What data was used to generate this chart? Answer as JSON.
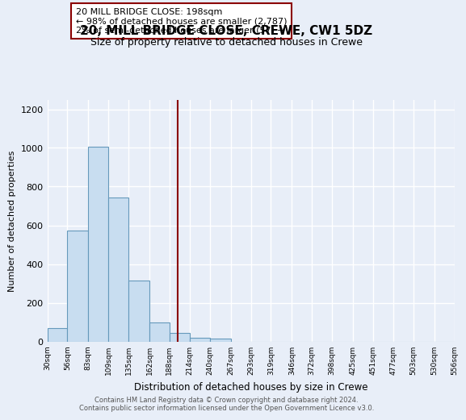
{
  "title": "20, MILL BRIDGE CLOSE, CREWE, CW1 5DZ",
  "subtitle": "Size of property relative to detached houses in Crewe",
  "xlabel": "Distribution of detached houses by size in Crewe",
  "ylabel": "Number of detached properties",
  "bar_edges": [
    30,
    56,
    83,
    109,
    135,
    162,
    188,
    214,
    240,
    267,
    293,
    319,
    346,
    372,
    398,
    425,
    451,
    477,
    503,
    530,
    556
  ],
  "bar_heights": [
    70,
    575,
    1005,
    745,
    315,
    100,
    45,
    20,
    15,
    0,
    0,
    0,
    0,
    0,
    0,
    0,
    0,
    0,
    0,
    0
  ],
  "bar_fill_color": "#c8ddf0",
  "bar_edge_color": "#6699bb",
  "property_line_x": 198,
  "property_line_color": "#8b0000",
  "annotation_line1": "20 MILL BRIDGE CLOSE: 198sqm",
  "annotation_line2": "← 98% of detached houses are smaller (2,787)",
  "annotation_line3": "2% of semi-detached houses are larger (57) →",
  "ylim": [
    0,
    1250
  ],
  "yticks": [
    0,
    200,
    400,
    600,
    800,
    1000,
    1200
  ],
  "tick_labels": [
    "30sqm",
    "56sqm",
    "83sqm",
    "109sqm",
    "135sqm",
    "162sqm",
    "188sqm",
    "214sqm",
    "240sqm",
    "267sqm",
    "293sqm",
    "319sqm",
    "346sqm",
    "372sqm",
    "398sqm",
    "425sqm",
    "451sqm",
    "477sqm",
    "503sqm",
    "530sqm",
    "556sqm"
  ],
  "footer_line1": "Contains HM Land Registry data © Crown copyright and database right 2024.",
  "footer_line2": "Contains public sector information licensed under the Open Government Licence v3.0.",
  "bg_color": "#e8eef8",
  "grid_color": "#ffffff",
  "title_fontsize": 11,
  "subtitle_fontsize": 9
}
